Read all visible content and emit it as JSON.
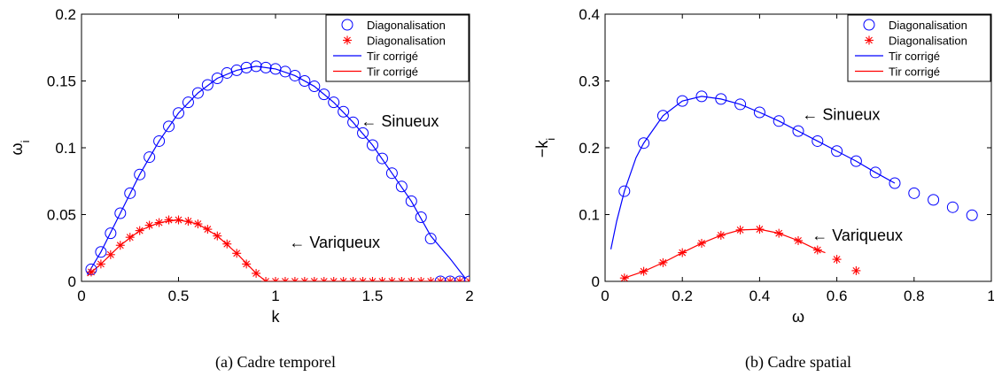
{
  "chart_data": [
    {
      "type": "line",
      "caption": "(a)  Cadre temporel",
      "xlabel": "k",
      "ylabel": "ω",
      "ylabel_sub": "i",
      "xlim": [
        0,
        2
      ],
      "ylim": [
        0,
        0.2
      ],
      "xticks": [
        0,
        0.5,
        1,
        1.5,
        2
      ],
      "xtick_labels": [
        "0",
        "0.5",
        "1",
        "1.5",
        "2"
      ],
      "yticks": [
        0,
        0.05,
        0.1,
        0.15,
        0.2
      ],
      "ytick_labels": [
        "0",
        "0.05",
        "0.1",
        "0.15",
        "0.2"
      ],
      "grid": false,
      "legend_position": "top-right",
      "legend": [
        {
          "label": "Diagonalisation",
          "marker": "circle",
          "color": "#0000ff"
        },
        {
          "label": "Diagonalisation",
          "marker": "star",
          "color": "#ff0000"
        },
        {
          "label": "Tir corrigé",
          "marker": "line",
          "color": "#0000ff"
        },
        {
          "label": "Tir corrigé",
          "marker": "line",
          "color": "#ff0000"
        }
      ],
      "annotations": [
        {
          "text": "← Sinueux",
          "x": 1.44,
          "y": 0.12
        },
        {
          "text": "← Variqueux",
          "x": 1.07,
          "y": 0.029
        }
      ],
      "series": [
        {
          "color": "#0000ff",
          "marker": "circle",
          "x": [
            0.05,
            0.1,
            0.15,
            0.2,
            0.25,
            0.3,
            0.35,
            0.4,
            0.45,
            0.5,
            0.55,
            0.6,
            0.65,
            0.7,
            0.75,
            0.8,
            0.85,
            0.9,
            0.95,
            1.0,
            1.05,
            1.1,
            1.15,
            1.2,
            1.25,
            1.3,
            1.35,
            1.4,
            1.45,
            1.5,
            1.55,
            1.6,
            1.65,
            1.7,
            1.75,
            1.8,
            1.85,
            1.9,
            1.95,
            2.0
          ],
          "y": [
            0.009,
            0.022,
            0.036,
            0.051,
            0.066,
            0.08,
            0.093,
            0.105,
            0.116,
            0.126,
            0.134,
            0.141,
            0.147,
            0.152,
            0.156,
            0.158,
            0.16,
            0.161,
            0.16,
            0.159,
            0.157,
            0.154,
            0.15,
            0.146,
            0.14,
            0.134,
            0.127,
            0.119,
            0.111,
            0.102,
            0.092,
            0.081,
            0.071,
            0.06,
            0.048,
            0.032,
            0.0,
            0.0,
            0.0,
            0.0
          ]
        },
        {
          "color": "#ff0000",
          "marker": "star",
          "x": [
            0.05,
            0.1,
            0.15,
            0.2,
            0.25,
            0.3,
            0.35,
            0.4,
            0.45,
            0.5,
            0.55,
            0.6,
            0.65,
            0.7,
            0.75,
            0.8,
            0.85,
            0.9,
            0.95,
            1.0,
            1.05,
            1.1,
            1.15,
            1.2,
            1.25,
            1.3,
            1.35,
            1.4,
            1.45,
            1.5,
            1.55,
            1.6,
            1.65,
            1.7,
            1.75,
            1.8,
            1.85,
            1.9,
            1.95,
            2.0
          ],
          "y": [
            0.007,
            0.013,
            0.02,
            0.027,
            0.033,
            0.038,
            0.042,
            0.044,
            0.046,
            0.046,
            0.045,
            0.043,
            0.039,
            0.034,
            0.028,
            0.021,
            0.013,
            0.006,
            0.0,
            0.0,
            0.0,
            0.0,
            0.0,
            0.0,
            0.0,
            0.0,
            0.0,
            0.0,
            0.0,
            0.0,
            0.0,
            0.0,
            0.0,
            0.0,
            0.0,
            0.0,
            0.0,
            0.0,
            0.0,
            0.0
          ]
        },
        {
          "color": "#0000ff",
          "marker": "line",
          "x": [
            0.03,
            0.1,
            0.2,
            0.3,
            0.4,
            0.5,
            0.6,
            0.7,
            0.8,
            0.9,
            1.0,
            1.1,
            1.2,
            1.3,
            1.4,
            1.5,
            1.6,
            1.7,
            1.8,
            1.9,
            1.98
          ],
          "y": [
            0.005,
            0.022,
            0.051,
            0.08,
            0.105,
            0.126,
            0.141,
            0.152,
            0.158,
            0.161,
            0.159,
            0.154,
            0.146,
            0.134,
            0.119,
            0.102,
            0.081,
            0.06,
            0.034,
            0.017,
            0.002
          ]
        },
        {
          "color": "#ff0000",
          "marker": "line",
          "x": [
            0.03,
            0.1,
            0.2,
            0.3,
            0.4,
            0.5,
            0.6,
            0.7,
            0.8,
            0.9,
            0.95,
            1.0,
            1.5,
            1.98
          ],
          "y": [
            0.004,
            0.013,
            0.027,
            0.038,
            0.044,
            0.046,
            0.043,
            0.034,
            0.021,
            0.006,
            0.0,
            0.0,
            0.0,
            0.0
          ]
        }
      ]
    },
    {
      "type": "line",
      "caption": "(b)  Cadre spatial",
      "xlabel": "ω",
      "ylabel": "−k",
      "ylabel_sub": "i",
      "xlim": [
        0,
        1
      ],
      "ylim": [
        0,
        0.4
      ],
      "xticks": [
        0,
        0.2,
        0.4,
        0.6,
        0.8,
        1
      ],
      "xtick_labels": [
        "0",
        "0.2",
        "0.4",
        "0.6",
        "0.8",
        "1"
      ],
      "yticks": [
        0,
        0.1,
        0.2,
        0.3,
        0.4
      ],
      "ytick_labels": [
        "0",
        "0.1",
        "0.2",
        "0.3",
        "0.4"
      ],
      "grid": false,
      "legend_position": "top-right",
      "legend": [
        {
          "label": "Diagonalisation",
          "marker": "circle",
          "color": "#0000ff"
        },
        {
          "label": "Diagonalisation",
          "marker": "star",
          "color": "#ff0000"
        },
        {
          "label": "Tir corrigé",
          "marker": "line",
          "color": "#0000ff"
        },
        {
          "label": "Tir corrigé",
          "marker": "line",
          "color": "#ff0000"
        }
      ],
      "annotations": [
        {
          "text": "← Sinueux",
          "x": 0.51,
          "y": 0.25
        },
        {
          "text": "← Variqueux",
          "x": 0.535,
          "y": 0.069
        }
      ],
      "series": [
        {
          "color": "#0000ff",
          "marker": "circle",
          "x": [
            0.05,
            0.1,
            0.15,
            0.2,
            0.25,
            0.3,
            0.35,
            0.4,
            0.45,
            0.5,
            0.55,
            0.6,
            0.65,
            0.7,
            0.75,
            0.8,
            0.85,
            0.9,
            0.95
          ],
          "y": [
            0.135,
            0.207,
            0.248,
            0.27,
            0.277,
            0.273,
            0.265,
            0.253,
            0.24,
            0.225,
            0.21,
            0.195,
            0.18,
            0.163,
            0.147,
            0.132,
            0.122,
            0.111,
            0.099
          ]
        },
        {
          "color": "#ff0000",
          "marker": "star",
          "x": [
            0.05,
            0.1,
            0.15,
            0.2,
            0.25,
            0.3,
            0.35,
            0.4,
            0.45,
            0.5,
            0.55,
            0.6,
            0.65
          ],
          "y": [
            0.005,
            0.015,
            0.028,
            0.043,
            0.057,
            0.069,
            0.077,
            0.078,
            0.072,
            0.061,
            0.047,
            0.033,
            0.016
          ]
        },
        {
          "color": "#0000ff",
          "marker": "line",
          "x": [
            0.015,
            0.03,
            0.05,
            0.08,
            0.1,
            0.15,
            0.2,
            0.25,
            0.3,
            0.35,
            0.4,
            0.45,
            0.5,
            0.55,
            0.6,
            0.65,
            0.7,
            0.75
          ],
          "y": [
            0.048,
            0.09,
            0.135,
            0.185,
            0.207,
            0.248,
            0.27,
            0.277,
            0.273,
            0.265,
            0.253,
            0.24,
            0.225,
            0.21,
            0.195,
            0.18,
            0.163,
            0.147
          ]
        },
        {
          "color": "#ff0000",
          "marker": "line",
          "x": [
            0.05,
            0.1,
            0.15,
            0.2,
            0.25,
            0.3,
            0.35,
            0.4,
            0.45,
            0.5,
            0.55,
            0.57
          ],
          "y": [
            0.005,
            0.015,
            0.028,
            0.043,
            0.057,
            0.069,
            0.077,
            0.078,
            0.072,
            0.061,
            0.047,
            0.043
          ]
        }
      ]
    }
  ]
}
